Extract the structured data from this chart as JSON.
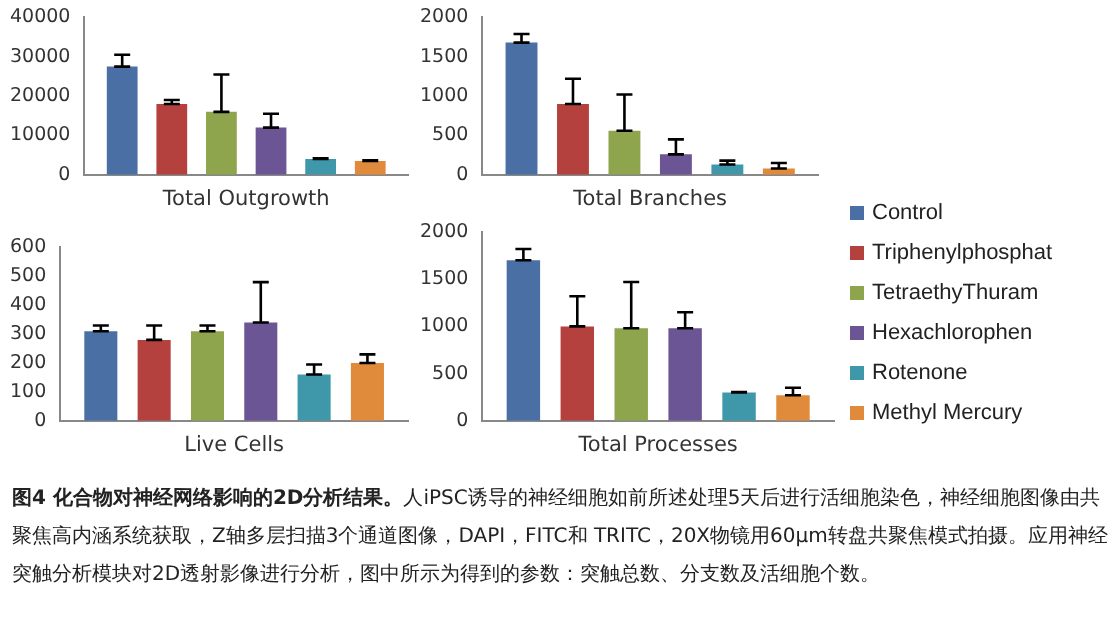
{
  "chart_data": [
    {
      "type": "bar",
      "xlabel": "Total Outgrowth",
      "categories": [
        null
      ],
      "tick_labels": "y",
      "ylim": [
        0,
        40000
      ],
      "yticks": [
        0,
        10000,
        20000,
        30000,
        40000
      ],
      "grid": false,
      "legend": false,
      "series": [
        {
          "color": "#4a6fa5",
          "values": [
            27500
          ],
          "errors": [
            [
              27500,
              30500
            ]
          ]
        },
        {
          "color": "#b5413e",
          "values": [
            18000
          ],
          "errors": [
            [
              18000,
              19000
            ]
          ]
        },
        {
          "color": "#8ea44d",
          "values": [
            16000
          ],
          "errors": [
            [
              16000,
              25500
            ]
          ]
        },
        {
          "color": "#6b5595",
          "values": [
            12000
          ],
          "errors": [
            [
              12000,
              15500
            ]
          ]
        },
        {
          "color": "#3f97aa",
          "values": [
            4000
          ],
          "errors": [
            [
              4000,
              4200
            ]
          ]
        },
        {
          "color": "#e08a3c",
          "values": [
            3500
          ],
          "errors": [
            [
              3500,
              3700
            ]
          ]
        }
      ]
    },
    {
      "type": "bar",
      "xlabel": "Total Branches",
      "categories": [
        null
      ],
      "tick_labels": "y",
      "ylim": [
        0,
        2000
      ],
      "yticks": [
        0,
        500,
        1000,
        1500,
        2000
      ],
      "grid": false,
      "legend": false,
      "series": [
        {
          "color": "#4a6fa5",
          "values": [
            1680
          ],
          "errors": [
            [
              1680,
              1790
            ]
          ]
        },
        {
          "color": "#b5413e",
          "values": [
            900
          ],
          "errors": [
            [
              900,
              1220
            ]
          ]
        },
        {
          "color": "#8ea44d",
          "values": [
            560
          ],
          "errors": [
            [
              560,
              1020
            ]
          ]
        },
        {
          "color": "#6b5595",
          "values": [
            260
          ],
          "errors": [
            [
              260,
              450
            ]
          ]
        },
        {
          "color": "#3f97aa",
          "values": [
            130
          ],
          "errors": [
            [
              130,
              180
            ]
          ]
        },
        {
          "color": "#e08a3c",
          "values": [
            80
          ],
          "errors": [
            [
              80,
              150
            ]
          ]
        }
      ]
    },
    {
      "type": "bar",
      "xlabel": "Live Cells",
      "categories": [
        null
      ],
      "tick_labels": "y",
      "ylim": [
        0,
        600
      ],
      "yticks": [
        0,
        100,
        200,
        300,
        400,
        500,
        600
      ],
      "grid": false,
      "legend": false,
      "series": [
        {
          "color": "#4a6fa5",
          "values": [
            310
          ],
          "errors": [
            [
              310,
              330
            ]
          ]
        },
        {
          "color": "#b5413e",
          "values": [
            280
          ],
          "errors": [
            [
              280,
              330
            ]
          ]
        },
        {
          "color": "#8ea44d",
          "values": [
            310
          ],
          "errors": [
            [
              310,
              330
            ]
          ]
        },
        {
          "color": "#6b5595",
          "values": [
            340
          ],
          "errors": [
            [
              340,
              480
            ]
          ]
        },
        {
          "color": "#3f97aa",
          "values": [
            160
          ],
          "errors": [
            [
              160,
              195
            ]
          ]
        },
        {
          "color": "#e08a3c",
          "values": [
            200
          ],
          "errors": [
            [
              200,
              230
            ]
          ]
        }
      ]
    },
    {
      "type": "bar",
      "xlabel": "Total Processes",
      "categories": [
        null
      ],
      "tick_labels": "y",
      "ylim": [
        0,
        2000
      ],
      "yticks": [
        0,
        500,
        1000,
        1500,
        2000
      ],
      "grid": false,
      "legend": "right",
      "series": [
        {
          "name": "Control",
          "color": "#4a6fa5",
          "values": [
            1700
          ],
          "errors": [
            [
              1700,
              1820
            ]
          ]
        },
        {
          "name": "Triphenylphosphat",
          "color": "#b5413e",
          "values": [
            1000
          ],
          "errors": [
            [
              1000,
              1320
            ]
          ]
        },
        {
          "name": "TetraethyThuram",
          "color": "#8ea44d",
          "values": [
            980
          ],
          "errors": [
            [
              980,
              1470
            ]
          ]
        },
        {
          "name": "Hexachlorophen",
          "color": "#6b5595",
          "values": [
            980
          ],
          "errors": [
            [
              980,
              1150
            ]
          ]
        },
        {
          "name": "Rotenone",
          "color": "#3f97aa",
          "values": [
            300
          ],
          "errors": [
            [
              300,
              305
            ]
          ]
        },
        {
          "name": "Methyl Mercury",
          "color": "#e08a3c",
          "values": [
            270
          ],
          "errors": [
            [
              270,
              350
            ]
          ]
        }
      ],
      "annotations": [
        "图4  化合物对神经网络影响的2D分析结果。",
        "人iPSC诱导的神经细胞如前所述处理5天后进行活细胞染色，神经细胞图像由共聚焦高内涵系统获取，Z轴多层扫描3个通道图像，DAPI，FITC和 TRITC，20X物镜用60μm转盘共聚焦模式拍摄。应用神经突触分析模块对2D透射影像进行分析，图中所示为得到的参数：突触总数、分支数及活细胞个数。"
      ]
    }
  ]
}
